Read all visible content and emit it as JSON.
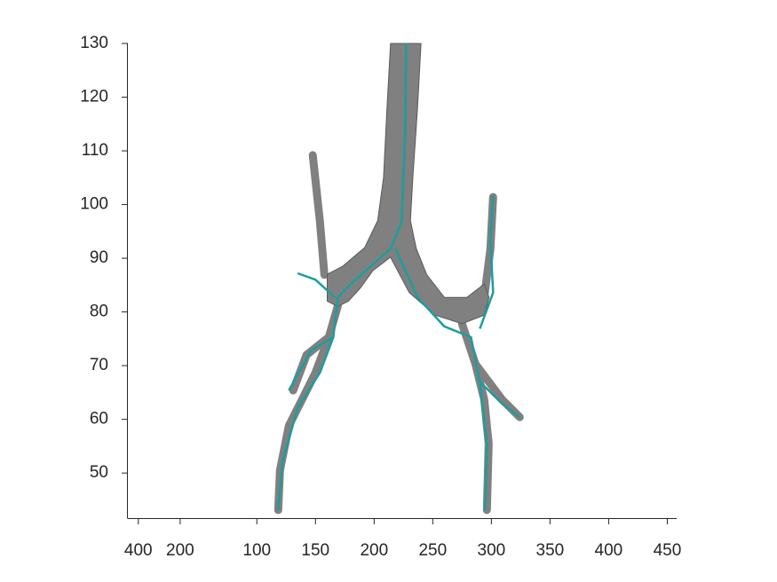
{
  "chart_data": {
    "type": "airway",
    "xlim": [
      -10,
      458
    ],
    "ylim": [
      41.6,
      130
    ],
    "zlim": [
      0,
      450
    ],
    "xticks": [
      100,
      150,
      200,
      250,
      300,
      350,
      400,
      450
    ],
    "yticks": [
      50,
      60,
      70,
      80,
      90,
      100,
      110,
      120,
      130
    ],
    "zticks": [
      400,
      200
    ],
    "surface": {
      "color": "#808080",
      "polygon": {
        "x": [
          214,
          211,
          208,
          203,
          192,
          173,
          160,
          160,
          169,
          178,
          188,
          199,
          214,
          218,
          230,
          252,
          275,
          294,
          298,
          294,
          279,
          260,
          245,
          236,
          231,
          233,
          237,
          240
        ],
        "y": [
          130,
          118,
          105,
          97,
          92,
          88.5,
          87,
          82,
          81,
          82,
          84.4,
          87.7,
          90.2,
          88.5,
          83.6,
          79.4,
          77.8,
          79.4,
          82.7,
          85.2,
          82.7,
          82.7,
          86.9,
          91.8,
          97,
          105,
          118,
          130
        ]
      },
      "branches": [
        {
          "x": [
            157.6,
            153.8,
            147.7
          ],
          "y": [
            86.9,
            96.8,
            109.2
          ]
        },
        {
          "x": [
            169,
            161.4,
            150,
            138.6,
            127.3,
            119.7,
            118.2
          ],
          "y": [
            81.1,
            75.3,
            68.7,
            63.7,
            58.8,
            50.5,
            43.1
          ]
        },
        {
          "x": [
            161.4,
            142.4,
            131
          ],
          "y": [
            75.3,
            72,
            65.4
          ]
        },
        {
          "x": [
            275,
            286.4,
            293.9,
            297.7,
            296.2
          ],
          "y": [
            77.8,
            70.3,
            63.7,
            55.5,
            43.1
          ]
        },
        {
          "x": [
            293.9,
            299.2,
            301.5
          ],
          "y": [
            82.7,
            91.8,
            101.4
          ]
        },
        {
          "x": [
            286.4,
            309.1,
            324.2
          ],
          "y": [
            70.3,
            63.7,
            60.4
          ]
        }
      ]
    },
    "centerlines": {
      "color": "#1a9e9e",
      "lines": [
        {
          "x": [
            227.3,
            226.5,
            223.5,
            214.4,
            184.1,
            169,
            165.2,
            153.8,
            134.8,
            122,
            118.2
          ],
          "y": [
            130,
            113.3,
            96.8,
            91.8,
            86,
            82.7,
            75.3,
            68.7,
            62.1,
            52.1,
            43.1
          ]
        },
        {
          "x": [
            218.2,
            237.1,
            259.8,
            282.6,
            290.2,
            296.2,
            294.7
          ],
          "y": [
            91.8,
            82.7,
            77.3,
            75.3,
            67,
            55.5,
            43.1
          ]
        },
        {
          "x": [
            166.7,
            150,
            134.8
          ],
          "y": [
            82.7,
            86,
            87.2
          ]
        },
        {
          "x": [
            290.2,
            301.5,
            299.2,
            301.5
          ],
          "y": [
            76.9,
            83.6,
            93.5,
            101.7
          ]
        },
        {
          "x": [
            290.2,
            309.1,
            324.2
          ],
          "y": [
            67,
            62.9,
            60.4
          ]
        },
        {
          "x": [
            165.2,
            146.2,
            127.3
          ],
          "y": [
            75.3,
            72.8,
            65.4
          ]
        }
      ]
    }
  }
}
